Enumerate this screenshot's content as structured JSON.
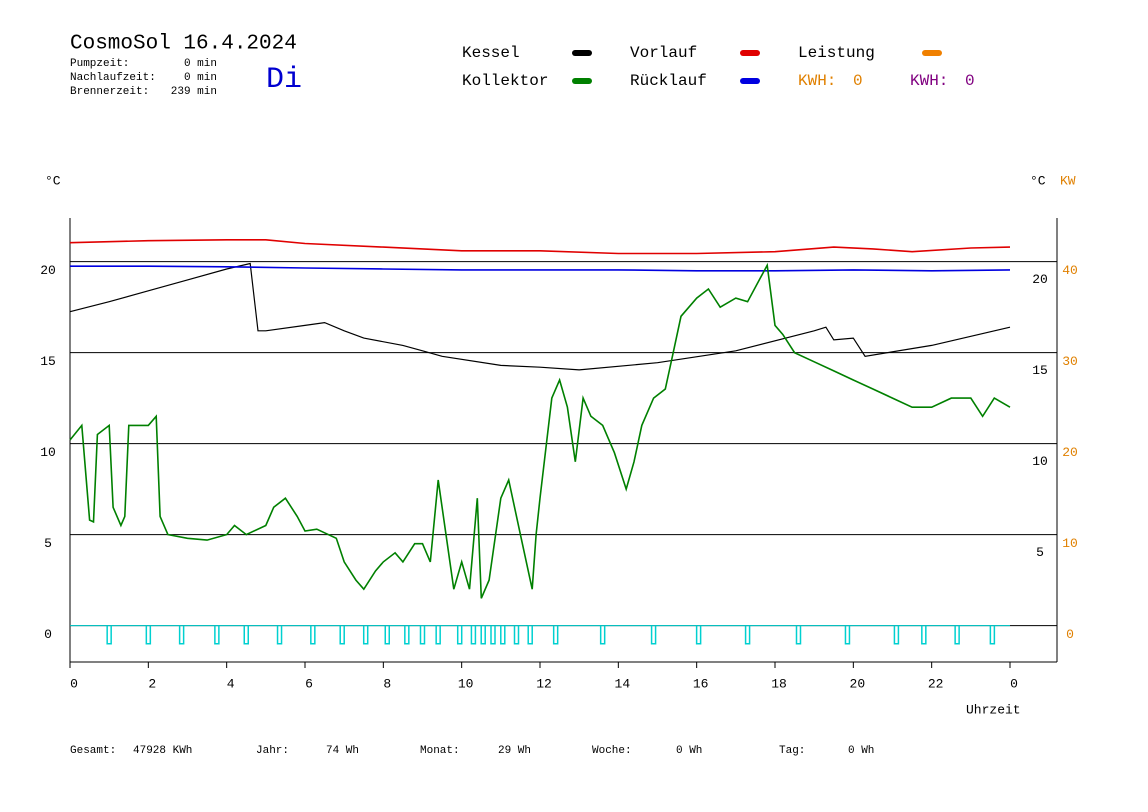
{
  "header": {
    "title": "CosmoSol 16.4.2024",
    "weekday": "Di",
    "stats": [
      {
        "label": "Pumpzeit:",
        "value": "0 min"
      },
      {
        "label": "Nachlaufzeit:",
        "value": "0 min"
      },
      {
        "label": "Brennerzeit:",
        "value": "239 min"
      }
    ]
  },
  "footer": [
    {
      "label": "Gesamt:",
      "value": "47928 KWh"
    },
    {
      "label": "Jahr:",
      "value": "74 Wh"
    },
    {
      "label": "Monat:",
      "value": "29 Wh"
    },
    {
      "label": "Woche:",
      "value": "0 Wh"
    },
    {
      "label": "Tag:",
      "value": "0 Wh"
    }
  ],
  "chart_data": {
    "type": "line",
    "y_label": "°C",
    "y2_label_left": "°C",
    "y2_label": "KW",
    "x_label": "Uhrzeit",
    "xlim": [
      0,
      25.2
    ],
    "xticks": [
      0,
      2,
      4,
      6,
      8,
      10,
      12,
      14,
      16,
      18,
      20,
      22,
      {
        "value": 24,
        "label": "0"
      }
    ],
    "ylim": [
      -2,
      22.4
    ],
    "yticks": [
      0,
      5,
      10,
      15,
      20
    ],
    "y_inner_ticks": [
      5,
      10,
      15,
      20
    ],
    "y2lim": [
      -4,
      44.8
    ],
    "y2ticks": [
      0,
      10,
      20,
      30,
      40
    ],
    "y2_color": "#e08000",
    "grid": true,
    "series": [
      {
        "name": "Kessel",
        "color": "#000000",
        "x": [
          0,
          1,
          2,
          3,
          4,
          4.6,
          4.8,
          5,
          6,
          6.5,
          7,
          7.5,
          8.5,
          9,
          9.5,
          11,
          12,
          13,
          15,
          17,
          19,
          19.3,
          19.5,
          20,
          20.3,
          22,
          24
        ],
        "values": [
          17.25,
          17.8,
          18.4,
          19,
          19.6,
          19.9,
          16.2,
          16.2,
          16.5,
          16.65,
          16.2,
          15.8,
          15.4,
          15.1,
          14.8,
          14.3,
          14.2,
          14.05,
          14.45,
          15.1,
          16.2,
          16.4,
          15.7,
          15.8,
          14.8,
          15.4,
          16.4
        ]
      },
      {
        "name": "Vorlauf",
        "color": "#e00000",
        "x": [
          0,
          2,
          4,
          5,
          6,
          8,
          10,
          12,
          14,
          16,
          18,
          19.5,
          20.5,
          21.5,
          23,
          24
        ],
        "values": [
          21.04,
          21.15,
          21.2,
          21.2,
          21.0,
          20.8,
          20.6,
          20.6,
          20.45,
          20.45,
          20.55,
          20.8,
          20.7,
          20.55,
          20.75,
          20.8
        ]
      },
      {
        "name": "Rücklauf",
        "color": "#0000e0",
        "x": [
          0,
          2,
          4,
          6,
          8,
          10,
          12,
          14,
          16,
          18,
          20,
          22,
          24
        ],
        "values": [
          19.75,
          19.75,
          19.72,
          19.65,
          19.6,
          19.55,
          19.55,
          19.55,
          19.5,
          19.5,
          19.55,
          19.5,
          19.55
        ]
      },
      {
        "name": "Kollektor",
        "color": "#008000",
        "x": [
          0,
          0.3,
          0.5,
          0.6,
          0.7,
          1,
          1.1,
          1.3,
          1.4,
          1.5,
          2,
          2.2,
          2.3,
          2.5,
          3,
          3.5,
          4,
          4.2,
          4.5,
          5,
          5.2,
          5.5,
          5.8,
          6,
          6.3,
          6.8,
          7,
          7.3,
          7.5,
          7.8,
          8,
          8.3,
          8.5,
          8.8,
          9,
          9.2,
          9.4,
          9.6,
          9.8,
          10,
          10.2,
          10.4,
          10.5,
          10.7,
          11,
          11.2,
          11.5,
          11.8,
          11.9,
          12,
          12.3,
          12.5,
          12.7,
          12.9,
          13.1,
          13.3,
          13.6,
          13.9,
          14.2,
          14.4,
          14.6,
          14.9,
          15.2,
          15.4,
          15.6,
          16,
          16.3,
          16.6,
          17,
          17.3,
          17.6,
          17.8,
          18,
          18.2,
          18.5,
          19,
          19.5,
          20,
          20.5,
          21,
          21.5,
          22,
          22.5,
          23,
          23.3,
          23.6,
          24
        ],
        "values": [
          10.2,
          11,
          5.8,
          5.7,
          10.5,
          11,
          6.5,
          5.5,
          6,
          11,
          11,
          11.5,
          6,
          5,
          4.8,
          4.7,
          5,
          5.5,
          5,
          5.5,
          6.5,
          7,
          6,
          5.2,
          5.3,
          4.8,
          3.5,
          2.5,
          2,
          3,
          3.5,
          4,
          3.5,
          4.5,
          4.5,
          3.5,
          8,
          5,
          2,
          3.5,
          2,
          7,
          1.5,
          2.5,
          7,
          8,
          5,
          2,
          5,
          7,
          12.5,
          13.5,
          12,
          9,
          12.5,
          11.5,
          11,
          9.5,
          7.5,
          9,
          11,
          12.5,
          13,
          15,
          17,
          18,
          18.5,
          17.5,
          18,
          17.8,
          19,
          19.8,
          16.5,
          16,
          15,
          14.5,
          14,
          13.5,
          13,
          12.5,
          12,
          12,
          12.5,
          12.5,
          11.5,
          12.5,
          12
        ]
      }
    ],
    "legend_extra": {
      "name": "Leistung",
      "color": "#f08000"
    },
    "kwh": [
      {
        "label": "KWH:",
        "value": 0,
        "color": "#e08000"
      },
      {
        "label": "KWH:",
        "value": 0,
        "color": "#800080"
      }
    ],
    "pump": {
      "color": "#00d0d0",
      "low": -1,
      "x": [
        1,
        2,
        2.85,
        3.75,
        4.5,
        5.35,
        6.2,
        6.95,
        7.55,
        8.1,
        8.6,
        9,
        9.4,
        9.95,
        10.3,
        10.55,
        10.8,
        11.05,
        11.4,
        11.75,
        12.4,
        13.6,
        14.9,
        16.05,
        17.3,
        18.6,
        19.85,
        21.1,
        21.8,
        22.65,
        23.55
      ]
    }
  }
}
